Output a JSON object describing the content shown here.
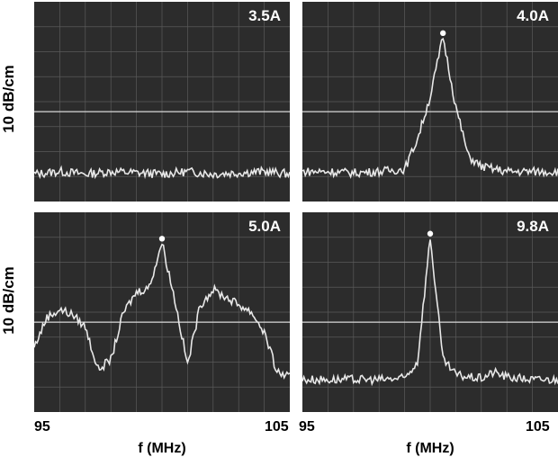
{
  "y_axis_label": "10 dB/cm",
  "x_axis_label": "f (MHz)",
  "x_ticks": {
    "min": "95",
    "max": "105"
  },
  "colors": {
    "screen": "#2c2c2c",
    "trace": "#e8e8e8",
    "grid": "#5a5a5a"
  },
  "chart_data": [
    {
      "type": "line",
      "title": "3.5A",
      "xlabel": "",
      "ylabel": "10 dB/cm",
      "xlim": [
        95,
        105
      ],
      "ylim": [
        0,
        8
      ],
      "reference_level": 3.6,
      "series": [
        {
          "x": [
            95,
            96,
            97,
            98,
            99,
            100,
            101,
            102,
            103,
            104,
            105
          ],
          "y": [
            1.1,
            1.2,
            1.1,
            1.2,
            1.15,
            1.1,
            1.2,
            1.1,
            1.15,
            1.2,
            1.1
          ]
        }
      ]
    },
    {
      "type": "line",
      "title": "4.0A",
      "xlabel": "",
      "ylabel": "10 dB/cm",
      "xlim": [
        95,
        105
      ],
      "ylim": [
        0,
        8
      ],
      "reference_level": 3.6,
      "series": [
        {
          "x": [
            95,
            96,
            97,
            98,
            99,
            99.5,
            100,
            100.5,
            101,
            101.5,
            102,
            102.5,
            103,
            104,
            105
          ],
          "y": [
            1.2,
            1.2,
            1.15,
            1.2,
            1.3,
            2.5,
            4.2,
            6.6,
            3.8,
            1.8,
            1.4,
            1.3,
            1.2,
            1.2,
            1.2
          ]
        }
      ]
    },
    {
      "type": "line",
      "title": "5.0A",
      "xlabel": "",
      "ylabel": "10 dB/cm",
      "xlim": [
        95,
        105
      ],
      "ylim": [
        0,
        8
      ],
      "reference_level": 3.6,
      "series": [
        {
          "x": [
            95,
            95.5,
            96,
            96.5,
            97,
            97.5,
            98,
            98.5,
            99,
            99.5,
            100,
            100.5,
            101,
            101.5,
            102,
            102.5,
            103,
            103.5,
            104,
            104.5,
            105
          ],
          "y": [
            2.6,
            3.8,
            4.1,
            3.9,
            3.4,
            1.7,
            2.1,
            4.0,
            4.8,
            5.0,
            6.8,
            4.5,
            1.9,
            4.3,
            4.9,
            4.6,
            4.3,
            4.0,
            3.2,
            1.6,
            1.4
          ]
        }
      ]
    },
    {
      "type": "line",
      "title": "9.8A",
      "xlabel": "",
      "ylabel": "10 dB/cm",
      "xlim": [
        95,
        105
      ],
      "ylim": [
        0,
        8
      ],
      "reference_level": 3.6,
      "series": [
        {
          "x": [
            95,
            96,
            97,
            98,
            99,
            99.5,
            100,
            100.5,
            101,
            101.5,
            102,
            102.5,
            103,
            104,
            105
          ],
          "y": [
            1.3,
            1.3,
            1.3,
            1.3,
            1.35,
            2.0,
            7.0,
            2.1,
            1.5,
            1.4,
            1.35,
            1.6,
            1.4,
            1.3,
            1.3
          ]
        }
      ]
    }
  ]
}
